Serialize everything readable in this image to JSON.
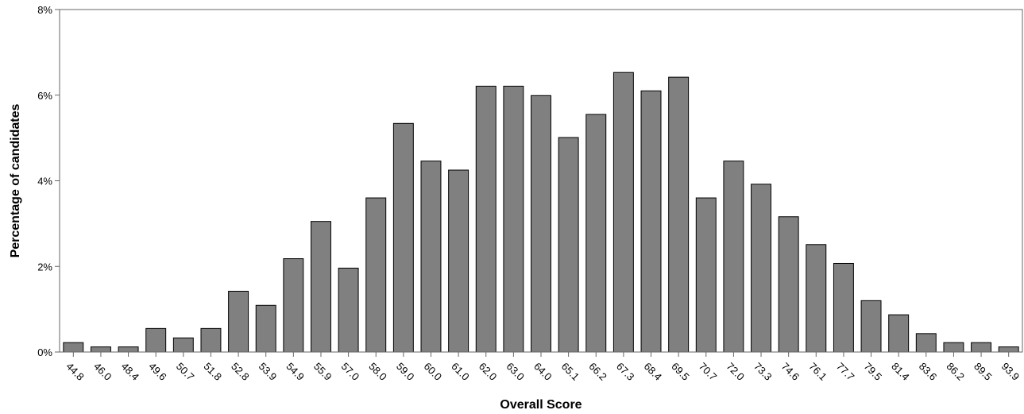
{
  "chart_data": {
    "type": "bar",
    "title": "",
    "xlabel": "Overall Score",
    "ylabel": "Percentage of candidates",
    "ylim": [
      0,
      8
    ],
    "y_ticks": [
      0,
      2,
      4,
      6,
      8
    ],
    "y_tick_format": "%",
    "bar_color": "#808080",
    "bar_edge_color": "#000000",
    "grid": false,
    "categories": [
      "44.8",
      "46.0",
      "48.4",
      "49.6",
      "50.7",
      "51.8",
      "52.8",
      "53.9",
      "54.9",
      "55.9",
      "57.0",
      "58.0",
      "59.0",
      "60.0",
      "61.0",
      "62.0",
      "63.0",
      "64.0",
      "65.1",
      "66.2",
      "67.3",
      "68.4",
      "69.5",
      "70.7",
      "72.0",
      "73.3",
      "74.6",
      "76.1",
      "77.7",
      "79.5",
      "81.4",
      "83.6",
      "86.2",
      "89.5",
      "93.9"
    ],
    "values": [
      0.22,
      0.12,
      0.12,
      0.55,
      0.33,
      0.55,
      1.42,
      1.09,
      2.18,
      3.05,
      1.96,
      3.6,
      5.34,
      4.46,
      4.25,
      6.21,
      6.21,
      5.99,
      5.01,
      5.55,
      6.53,
      6.1,
      6.42,
      3.6,
      4.46,
      3.92,
      3.16,
      2.51,
      2.07,
      1.2,
      0.87,
      0.43,
      0.22,
      0.22,
      0.12
    ]
  }
}
